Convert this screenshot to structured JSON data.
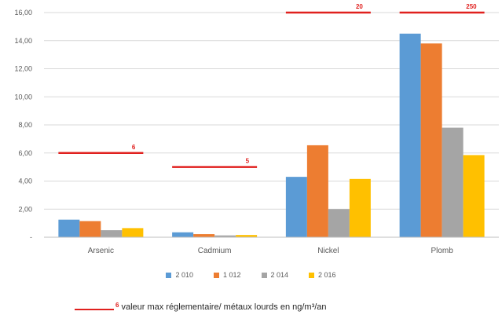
{
  "chart_data": {
    "type": "bar",
    "categories": [
      "Arsenic",
      "Cadmium",
      "Nickel",
      "Plomb"
    ],
    "series": [
      {
        "name": "2 010",
        "color": "#5b9bd5",
        "values": [
          1.25,
          0.35,
          4.3,
          14.5
        ]
      },
      {
        "name": "1 012",
        "color": "#ed7d31",
        "values": [
          1.15,
          0.22,
          6.55,
          13.8
        ]
      },
      {
        "name": "2 014",
        "color": "#a5a5a5",
        "values": [
          0.5,
          0.13,
          2.0,
          7.8
        ]
      },
      {
        "name": "2 016",
        "color": "#ffc000",
        "values": [
          0.65,
          0.16,
          4.15,
          5.85
        ]
      }
    ],
    "ylim": [
      0,
      16
    ],
    "yticks": [
      {
        "value": 0,
        "label": "-"
      },
      {
        "value": 2,
        "label": "2,00"
      },
      {
        "value": 4,
        "label": "4,00"
      },
      {
        "value": 6,
        "label": "6,00"
      },
      {
        "value": 8,
        "label": "8,00"
      },
      {
        "value": 10,
        "label": "10,00"
      },
      {
        "value": 12,
        "label": "12,00"
      },
      {
        "value": 14,
        "label": "14,00"
      },
      {
        "value": 16,
        "label": "16,00"
      }
    ],
    "grid": true,
    "legend_position": "bottom",
    "regulatory_limits": [
      {
        "category": "Arsenic",
        "value": 6,
        "label": "6",
        "drawn_at": 6
      },
      {
        "category": "Cadmium",
        "value": 5,
        "label": "5",
        "drawn_at": 5
      },
      {
        "category": "Nickel",
        "value": 20,
        "label": "20",
        "drawn_at": 16
      },
      {
        "category": "Plomb",
        "value": 250,
        "label": "250",
        "drawn_at": 16
      }
    ],
    "limit_color": "#e0201e"
  },
  "note": {
    "number": "6",
    "text": "valeur max réglementaire/ métaux lourds en ng/m³/an"
  }
}
